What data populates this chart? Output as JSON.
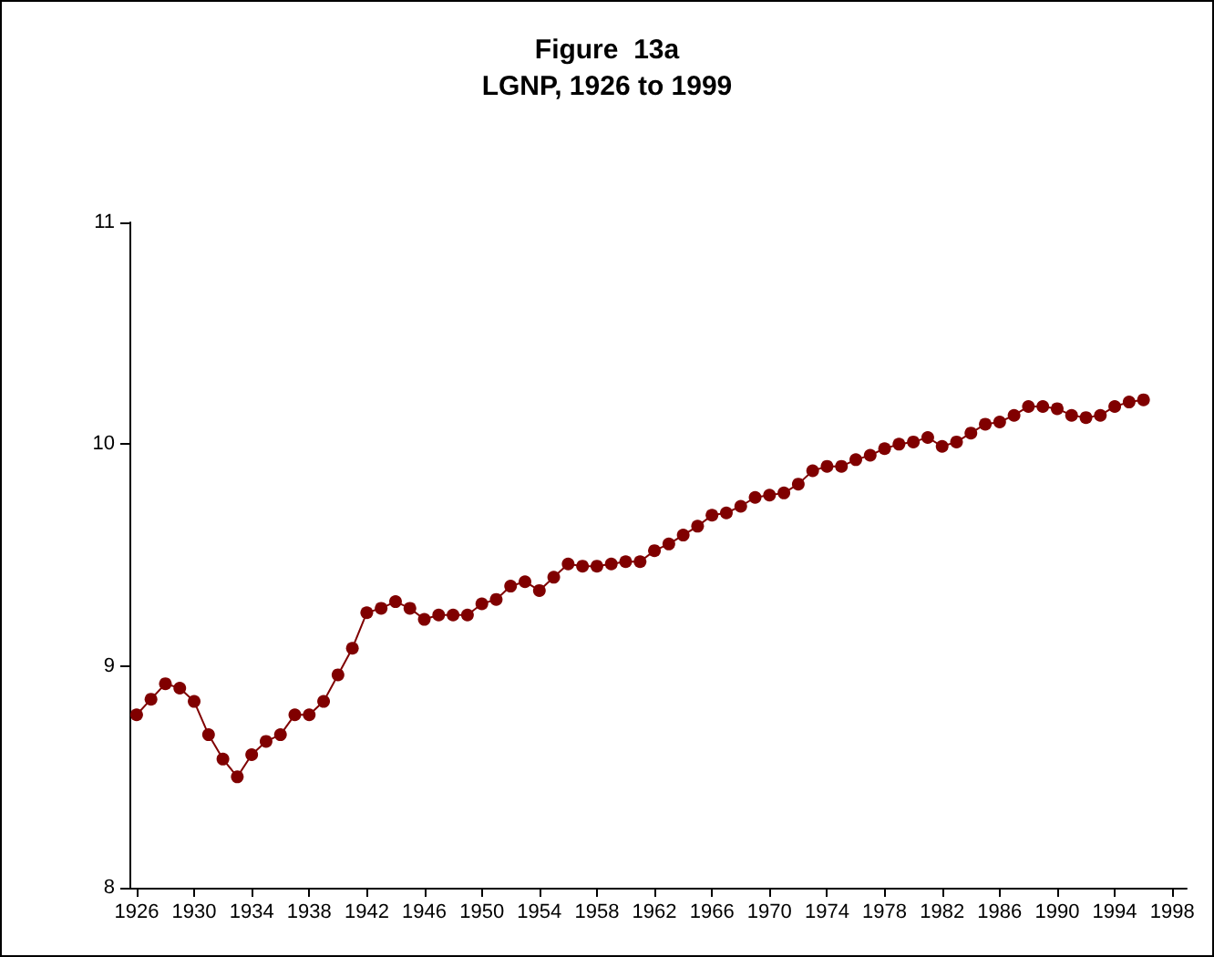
{
  "chart_data": {
    "type": "line",
    "title": "Figure  13a",
    "subtitle": "LGNP, 1926 to 1999",
    "x": [
      1926,
      1927,
      1928,
      1929,
      1930,
      1931,
      1932,
      1933,
      1934,
      1935,
      1936,
      1937,
      1938,
      1939,
      1940,
      1941,
      1942,
      1943,
      1944,
      1945,
      1946,
      1947,
      1948,
      1949,
      1950,
      1951,
      1952,
      1953,
      1954,
      1955,
      1956,
      1957,
      1958,
      1959,
      1960,
      1961,
      1962,
      1963,
      1964,
      1965,
      1966,
      1967,
      1968,
      1969,
      1970,
      1971,
      1972,
      1973,
      1974,
      1975,
      1976,
      1977,
      1978,
      1979,
      1980,
      1981,
      1982,
      1983,
      1984,
      1985,
      1986,
      1987,
      1988,
      1989,
      1990,
      1991,
      1992,
      1993,
      1994,
      1995,
      1996
    ],
    "series": [
      {
        "color": "#800000",
        "values": [
          8.78,
          8.85,
          8.92,
          8.9,
          8.84,
          8.69,
          8.58,
          8.5,
          8.6,
          8.66,
          8.69,
          8.78,
          8.78,
          8.84,
          8.96,
          9.08,
          9.24,
          9.26,
          9.29,
          9.26,
          9.21,
          9.23,
          9.23,
          9.23,
          9.28,
          9.3,
          9.36,
          9.38,
          9.34,
          9.4,
          9.46,
          9.45,
          9.45,
          9.46,
          9.47,
          9.47,
          9.52,
          9.55,
          9.59,
          9.63,
          9.68,
          9.69,
          9.72,
          9.76,
          9.77,
          9.78,
          9.82,
          9.88,
          9.9,
          9.9,
          9.93,
          9.95,
          9.98,
          10.0,
          10.01,
          10.03,
          9.99,
          10.01,
          10.05,
          10.09,
          10.1,
          10.13,
          10.17,
          10.17,
          10.16,
          10.13,
          10.12,
          10.13,
          10.17,
          10.19,
          10.2
        ]
      }
    ],
    "xlim": [
      1925.5,
      1999
    ],
    "xticks": [
      1926,
      1930,
      1934,
      1938,
      1942,
      1946,
      1950,
      1954,
      1958,
      1962,
      1966,
      1970,
      1974,
      1978,
      1982,
      1986,
      1990,
      1994,
      1998
    ],
    "ylim": [
      8,
      11
    ],
    "yticks": [
      8,
      9,
      10,
      11
    ],
    "grid": false,
    "marker": "circle",
    "line_style": "solid"
  }
}
